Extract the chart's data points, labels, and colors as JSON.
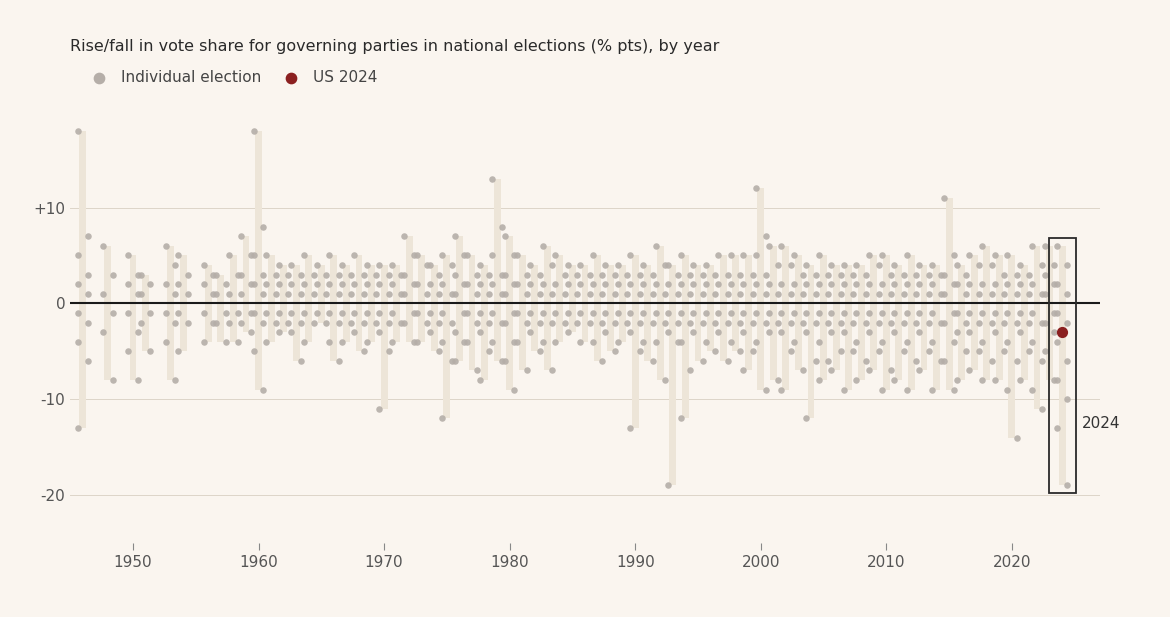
{
  "title": "Rise/fall in vote share for governing parties in national elections (% pts), by year",
  "background_color": "#faf5ef",
  "dot_color": "#b5aea8",
  "highlight_color": "#8b2020",
  "range_bar_color": "#ede5d8",
  "zero_line_color": "#1a1a1a",
  "xlim": [
    1945,
    2027
  ],
  "ylim": [
    -25,
    22
  ],
  "yticks": [
    -20,
    -10,
    0,
    10
  ],
  "ytick_labels": [
    "-20",
    "-10",
    "0",
    "+10"
  ],
  "xticks": [
    1950,
    1960,
    1970,
    1980,
    1990,
    2000,
    2010,
    2020
  ],
  "us_2024_value": -3,
  "us_2024_year": 2024,
  "year_clusters": {
    "1946": [
      18,
      7,
      5,
      3,
      2,
      1,
      -1,
      -2,
      -4,
      -6,
      -13
    ],
    "1948": [
      6,
      3,
      1,
      -1,
      -3,
      -8
    ],
    "1950": [
      5,
      3,
      2,
      1,
      -1,
      -3,
      -5,
      -8
    ],
    "1951": [
      3,
      2,
      1,
      -1,
      -2,
      -5
    ],
    "1953": [
      6,
      4,
      2,
      1,
      -1,
      -2,
      -4,
      -8
    ],
    "1954": [
      5,
      3,
      2,
      1,
      -1,
      -2,
      -5
    ],
    "1956": [
      4,
      3,
      2,
      1,
      -1,
      -2,
      -4
    ],
    "1957": [
      3,
      2,
      1,
      -1,
      -2,
      -4
    ],
    "1958": [
      5,
      3,
      1,
      -1,
      -2,
      -4
    ],
    "1959": [
      7,
      5,
      3,
      2,
      1,
      -1,
      -2,
      -3
    ],
    "1960": [
      18,
      8,
      5,
      3,
      2,
      1,
      -1,
      -2,
      -5,
      -9
    ],
    "1961": [
      5,
      3,
      2,
      1,
      -1,
      -2,
      -4
    ],
    "1962": [
      4,
      3,
      2,
      1,
      -1,
      -2,
      -3
    ],
    "1963": [
      4,
      3,
      2,
      1,
      -1,
      -2,
      -3,
      -6
    ],
    "1964": [
      5,
      3,
      2,
      1,
      -1,
      -2,
      -4
    ],
    "1965": [
      4,
      3,
      2,
      1,
      -1,
      -2
    ],
    "1966": [
      5,
      3,
      2,
      1,
      -1,
      -2,
      -4,
      -6
    ],
    "1967": [
      4,
      3,
      2,
      1,
      -1,
      -2,
      -4
    ],
    "1968": [
      5,
      3,
      2,
      1,
      -1,
      -2,
      -3,
      -5
    ],
    "1969": [
      4,
      3,
      2,
      1,
      -1,
      -2,
      -4
    ],
    "1970": [
      4,
      3,
      2,
      1,
      -1,
      -2,
      -3,
      -5,
      -11
    ],
    "1971": [
      4,
      3,
      2,
      1,
      -1,
      -2,
      -4
    ],
    "1972": [
      7,
      5,
      3,
      2,
      1,
      -1,
      -2,
      -4
    ],
    "1973": [
      5,
      4,
      2,
      1,
      -1,
      -2,
      -4
    ],
    "1974": [
      4,
      3,
      2,
      1,
      -1,
      -2,
      -3,
      -5
    ],
    "1975": [
      5,
      4,
      2,
      1,
      -1,
      -2,
      -4,
      -6,
      -12
    ],
    "1976": [
      7,
      5,
      3,
      2,
      1,
      -1,
      -3,
      -4,
      -6
    ],
    "1977": [
      5,
      3,
      2,
      1,
      -1,
      -2,
      -4,
      -7
    ],
    "1978": [
      4,
      3,
      2,
      1,
      -1,
      -2,
      -3,
      -5,
      -8
    ],
    "1979": [
      13,
      8,
      5,
      3,
      2,
      1,
      -1,
      -2,
      -4,
      -6
    ],
    "1980": [
      7,
      5,
      3,
      2,
      1,
      -1,
      -2,
      -4,
      -6,
      -9
    ],
    "1981": [
      5,
      3,
      2,
      1,
      -1,
      -2,
      -4,
      -7
    ],
    "1982": [
      4,
      3,
      2,
      1,
      -1,
      -2,
      -3,
      -5
    ],
    "1983": [
      6,
      4,
      2,
      1,
      -1,
      -2,
      -4,
      -7
    ],
    "1984": [
      5,
      3,
      2,
      1,
      -1,
      -2,
      -4
    ],
    "1985": [
      4,
      3,
      2,
      1,
      -1,
      -2,
      -3
    ],
    "1986": [
      4,
      3,
      2,
      1,
      -1,
      -2,
      -4
    ],
    "1987": [
      5,
      3,
      2,
      1,
      -1,
      -2,
      -4,
      -6
    ],
    "1988": [
      4,
      3,
      2,
      1,
      -1,
      -2,
      -3,
      -5
    ],
    "1989": [
      4,
      3,
      2,
      1,
      -1,
      -2,
      -4
    ],
    "1990": [
      5,
      3,
      2,
      1,
      -1,
      -2,
      -3,
      -5,
      -13
    ],
    "1991": [
      4,
      3,
      2,
      1,
      -1,
      -2,
      -4,
      -6
    ],
    "1992": [
      6,
      4,
      2,
      1,
      -1,
      -2,
      -4,
      -8
    ],
    "1993": [
      4,
      3,
      2,
      1,
      -1,
      -2,
      -3,
      -4,
      -19
    ],
    "1994": [
      5,
      3,
      2,
      1,
      -1,
      -2,
      -4,
      -7,
      -12
    ],
    "1995": [
      4,
      3,
      2,
      1,
      -1,
      -2,
      -3,
      -6
    ],
    "1996": [
      4,
      3,
      2,
      1,
      -1,
      -2,
      -4,
      -5
    ],
    "1997": [
      5,
      3,
      2,
      1,
      -1,
      -2,
      -3,
      -6
    ],
    "1998": [
      5,
      3,
      2,
      1,
      -1,
      -2,
      -4,
      -5
    ],
    "1999": [
      5,
      3,
      2,
      1,
      -1,
      -2,
      -3,
      -5,
      -7
    ],
    "2000": [
      12,
      7,
      5,
      3,
      2,
      1,
      -1,
      -2,
      -4,
      -9
    ],
    "2001": [
      6,
      4,
      2,
      1,
      -1,
      -2,
      -3,
      -8
    ],
    "2002": [
      6,
      4,
      2,
      1,
      -1,
      -2,
      -3,
      -5,
      -9
    ],
    "2003": [
      5,
      3,
      2,
      1,
      -1,
      -2,
      -4,
      -7
    ],
    "2004": [
      4,
      3,
      2,
      1,
      -1,
      -2,
      -3,
      -6,
      -12
    ],
    "2005": [
      5,
      3,
      2,
      1,
      -1,
      -2,
      -4,
      -6,
      -8
    ],
    "2006": [
      4,
      3,
      2,
      1,
      -1,
      -2,
      -3,
      -5,
      -7
    ],
    "2007": [
      4,
      3,
      2,
      1,
      -1,
      -2,
      -3,
      -5,
      -9
    ],
    "2008": [
      4,
      3,
      2,
      1,
      -1,
      -2,
      -4,
      -6,
      -8
    ],
    "2009": [
      5,
      4,
      2,
      1,
      -1,
      -2,
      -3,
      -5,
      -7
    ],
    "2010": [
      5,
      3,
      2,
      1,
      -1,
      -2,
      -4,
      -7,
      -9
    ],
    "2011": [
      4,
      3,
      2,
      1,
      -1,
      -2,
      -3,
      -5,
      -8
    ],
    "2012": [
      5,
      3,
      2,
      1,
      -1,
      -2,
      -4,
      -6,
      -9
    ],
    "2013": [
      4,
      3,
      2,
      1,
      -1,
      -2,
      -3,
      -5,
      -7
    ],
    "2014": [
      4,
      3,
      2,
      1,
      -1,
      -2,
      -4,
      -6,
      -9
    ],
    "2015": [
      11,
      5,
      3,
      2,
      1,
      -1,
      -2,
      -4,
      -6,
      -9
    ],
    "2016": [
      4,
      3,
      2,
      1,
      -1,
      -2,
      -3,
      -5,
      -8
    ],
    "2017": [
      5,
      4,
      2,
      1,
      -1,
      -2,
      -3,
      -5,
      -7
    ],
    "2018": [
      6,
      4,
      2,
      1,
      -1,
      -2,
      -4,
      -6,
      -8
    ],
    "2019": [
      5,
      3,
      2,
      1,
      -1,
      -2,
      -3,
      -5,
      -8
    ],
    "2020": [
      5,
      3,
      2,
      1,
      -1,
      -2,
      -4,
      -6,
      -9,
      -14
    ],
    "2021": [
      4,
      3,
      2,
      1,
      -1,
      -2,
      -3,
      -5,
      -8
    ],
    "2022": [
      6,
      4,
      2,
      1,
      -1,
      -2,
      -4,
      -6,
      -9,
      -11
    ],
    "2023": [
      6,
      4,
      3,
      2,
      1,
      -1,
      -2,
      -3,
      -5,
      -8
    ],
    "2024": [
      6,
      4,
      2,
      1,
      -1,
      -2,
      -4,
      -6,
      -8,
      -10,
      -13,
      -19
    ]
  }
}
